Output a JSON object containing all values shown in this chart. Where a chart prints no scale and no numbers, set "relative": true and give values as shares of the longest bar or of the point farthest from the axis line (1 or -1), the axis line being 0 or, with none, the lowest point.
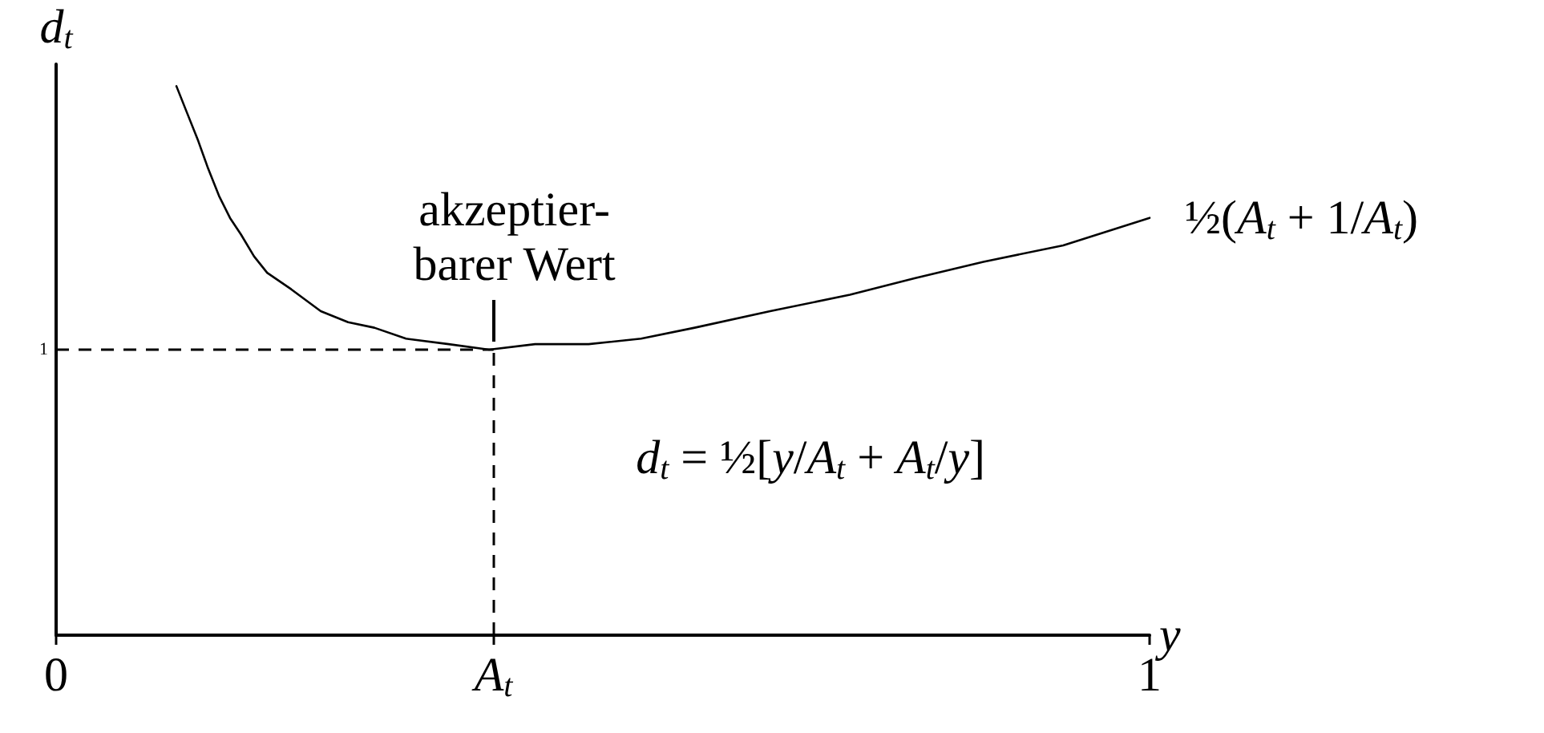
{
  "chart_data": {
    "type": "line",
    "relative": true,
    "xlabel": "y",
    "ylabel": "d$_{t}$",
    "xlim": [
      0,
      1
    ],
    "xticks": [
      0,
      {
        "value": 0.4,
        "label": "A$_{t}$"
      },
      1
    ],
    "grid": false,
    "marker": "none",
    "line_style": "solid",
    "series": [
      {
        "name": "½(A$_{t}$ + 1/A$_{t}$)",
        "color": "#000000",
        "x": [
          0.11,
          0.12,
          0.13,
          0.139,
          0.149,
          0.159,
          0.169,
          0.181,
          0.193,
          0.215,
          0.242,
          0.267,
          0.291,
          0.32,
          0.359,
          0.396,
          0.438,
          0.487,
          0.535,
          0.584,
          0.653,
          0.726,
          0.785,
          0.848,
          0.921,
          1.0
        ],
        "values": [
          1,
          0.95,
          0.9,
          0.85,
          0.8,
          0.76,
          0.73,
          0.69,
          0.66,
          0.63,
          0.59,
          0.57,
          0.56,
          0.54,
          0.53,
          0.52,
          0.53,
          0.53,
          0.54,
          0.56,
          0.59,
          0.62,
          0.65,
          0.68,
          0.71,
          0.76
        ]
      }
    ],
    "ref_lines": [
      {
        "axis": "y",
        "value": 0.52,
        "label": "1",
        "line_style": "dashed",
        "color": "#000000"
      },
      {
        "axis": "x",
        "value": 0.4,
        "line_style": "dashed",
        "color": "#000000"
      }
    ],
    "annotations": [
      {
        "text": "akzeptier-\nbarer Wert",
        "x": 0.4,
        "y": 0.52
      },
      "d$_{t}$ = ½[y/A$_{t}$ + A$_{t}$/y]"
    ]
  }
}
